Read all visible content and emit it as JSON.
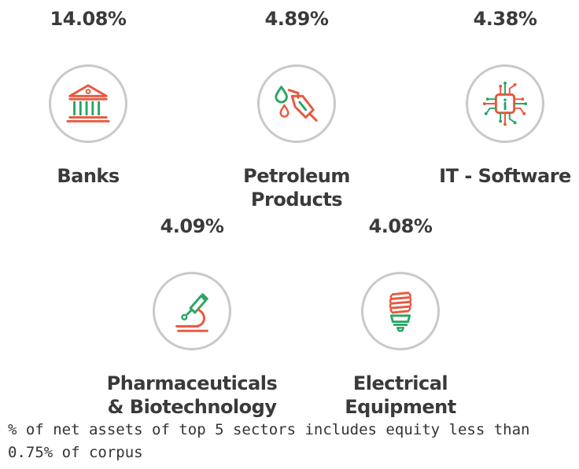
{
  "colors": {
    "text": "#3a3a3a",
    "ring": "#c9c9c9",
    "icon_red": "#e8583f",
    "icon_green": "#2aa565"
  },
  "sectors": [
    {
      "percent": "14.08%",
      "name_lines": [
        "Banks"
      ],
      "icon": "bank-icon"
    },
    {
      "percent": "4.89%",
      "name_lines": [
        "Petroleum",
        "Products"
      ],
      "icon": "fuel-nozzle-icon"
    },
    {
      "percent": "4.38%",
      "name_lines": [
        "IT - Software"
      ],
      "icon": "chip-icon"
    },
    {
      "percent": "4.09%",
      "name_lines": [
        "Pharmaceuticals",
        "& Biotechnology"
      ],
      "icon": "microscope-icon"
    },
    {
      "percent": "4.08%",
      "name_lines": [
        "Electrical",
        "Equipment"
      ],
      "icon": "cfl-bulb-icon"
    }
  ],
  "footnote": "% of net assets of top 5 sectors includes equity less than 0.75% of corpus"
}
